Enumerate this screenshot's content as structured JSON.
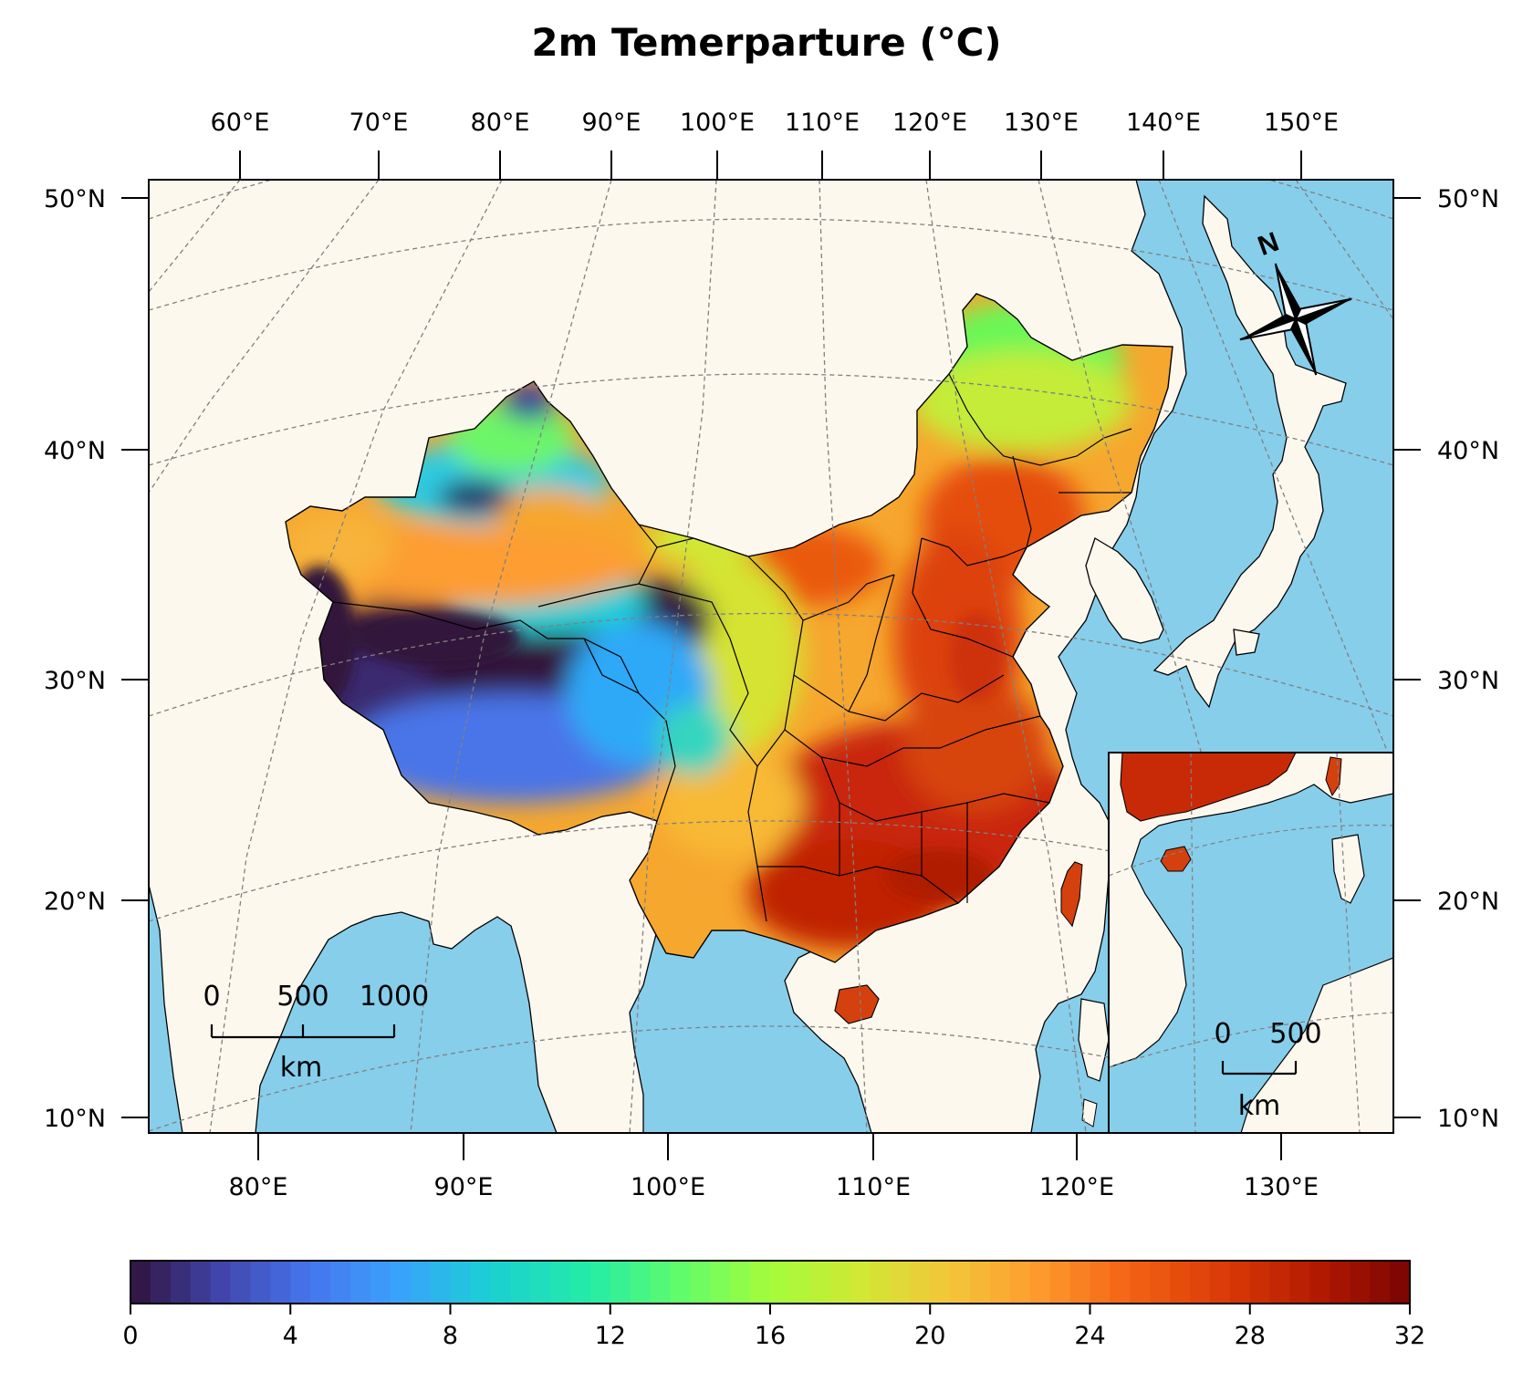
{
  "title": "2m Temerparture (°C)",
  "top_lon_labels": [
    "60°E",
    "70°E",
    "80°E",
    "90°E",
    "100°E",
    "110°E",
    "120°E",
    "130°E",
    "140°E",
    "150°E"
  ],
  "bottom_lon_labels": [
    "80°E",
    "90°E",
    "100°E",
    "110°E",
    "120°E",
    "130°E"
  ],
  "left_lat_labels": [
    "50°N",
    "40°N",
    "30°N",
    "20°N",
    "10°N"
  ],
  "right_lat_labels": [
    "50°N",
    "40°N",
    "30°N",
    "20°N",
    "10°N"
  ],
  "main_scale_bar": {
    "labels": [
      "0",
      "500",
      "1000"
    ],
    "unit": "km"
  },
  "inset_scale_bar": {
    "labels": [
      "0",
      "500"
    ],
    "unit": "km"
  },
  "north_arrow": {
    "label": "N",
    "icon": "compass-rose-icon"
  },
  "colorbar": {
    "min": 0,
    "max": 32,
    "step": 0.5,
    "colormap": "turbo",
    "tick_labels": [
      "0",
      "4",
      "8",
      "12",
      "16",
      "20",
      "24",
      "28",
      "32"
    ]
  },
  "colors": {
    "ocean": "#87ceeb",
    "land": "#fdf8ee",
    "graticule": "#808080",
    "border": "#000000"
  }
}
